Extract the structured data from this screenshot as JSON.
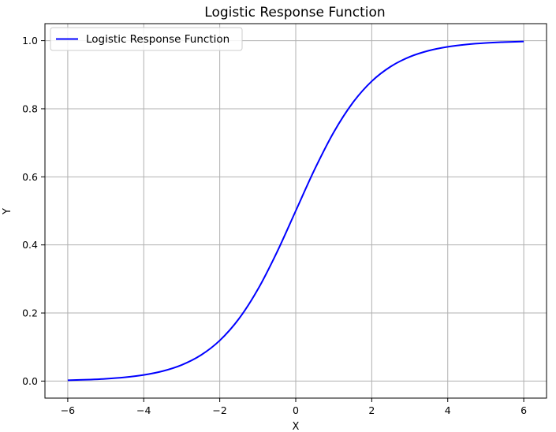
{
  "chart_data": {
    "type": "line",
    "title": "Logistic Response Function",
    "xlabel": "X",
    "ylabel": "Y",
    "xlim": [
      -6.6,
      6.6
    ],
    "ylim": [
      -0.05,
      1.05
    ],
    "xticks": [
      -6,
      -4,
      -2,
      0,
      2,
      4,
      6
    ],
    "yticks": [
      0.0,
      0.2,
      0.4,
      0.6,
      0.8,
      1.0
    ],
    "xtick_labels": [
      "−6",
      "−4",
      "−2",
      "0",
      "2",
      "4",
      "6"
    ],
    "ytick_labels": [
      "0.0",
      "0.2",
      "0.4",
      "0.6",
      "0.8",
      "1.0"
    ],
    "grid": true,
    "legend_position": "top-left",
    "series": [
      {
        "name": "Logistic Response Function",
        "color": "#0000ff",
        "x": [
          -6.0,
          -5.5,
          -5.0,
          -4.5,
          -4.0,
          -3.5,
          -3.0,
          -2.5,
          -2.0,
          -1.5,
          -1.0,
          -0.5,
          0.0,
          0.5,
          1.0,
          1.5,
          2.0,
          2.5,
          3.0,
          3.5,
          4.0,
          4.5,
          5.0,
          5.5,
          6.0
        ],
        "y": [
          0.0025,
          0.0041,
          0.0067,
          0.011,
          0.018,
          0.0293,
          0.0474,
          0.0759,
          0.1192,
          0.1824,
          0.2689,
          0.3775,
          0.5,
          0.6225,
          0.7311,
          0.8176,
          0.8808,
          0.9241,
          0.9526,
          0.9707,
          0.982,
          0.989,
          0.9933,
          0.9959,
          0.9975
        ]
      }
    ]
  }
}
